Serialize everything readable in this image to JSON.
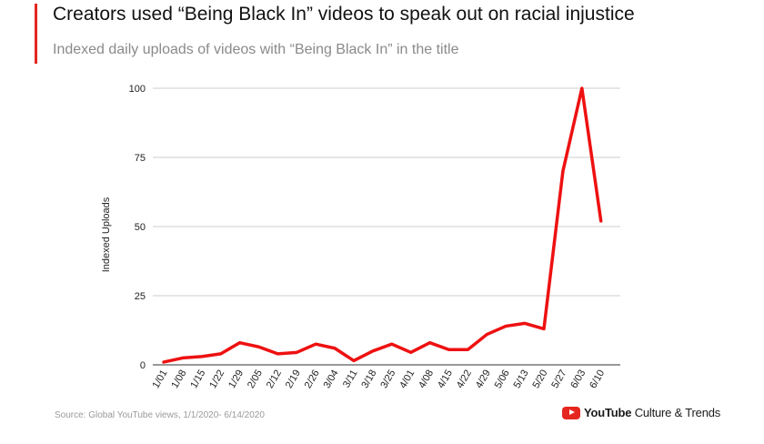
{
  "header": {
    "title": "Creators used “Being Black In” videos to speak out on racial injustice",
    "subtitle": "Indexed daily uploads of videos with “Being Black In” in the title"
  },
  "footer": {
    "source": "Source: Global YouTube views, 1/1/2020- 6/14/2020",
    "brand_name": "YouTube",
    "brand_suffix": "Culture & Trends"
  },
  "colors": {
    "accent": "#e5261f",
    "line": "#ee1111",
    "grid": "#cccccc"
  },
  "chart_data": {
    "type": "line",
    "title": "",
    "xlabel": "",
    "ylabel": "Indexed Uploads",
    "ylim": [
      0,
      100
    ],
    "yticks": [
      0,
      25,
      50,
      75,
      100
    ],
    "grid": true,
    "categories": [
      "1/01",
      "1/08",
      "1/15",
      "1/22",
      "1/29",
      "2/05",
      "2/12",
      "2/19",
      "2/26",
      "3/04",
      "3/11",
      "3/18",
      "3/25",
      "4/01",
      "4/08",
      "4/15",
      "4/22",
      "4/29",
      "5/06",
      "5/13",
      "5/20",
      "5/27",
      "6/03",
      "6/10"
    ],
    "series": [
      {
        "values": [
          1,
          2.5,
          3,
          4,
          8,
          6.5,
          4,
          4.5,
          7.5,
          6,
          1.5,
          5,
          7.5,
          4.5,
          8,
          5.5,
          5.5,
          11,
          14,
          15,
          13,
          70,
          100,
          52
        ]
      }
    ]
  }
}
